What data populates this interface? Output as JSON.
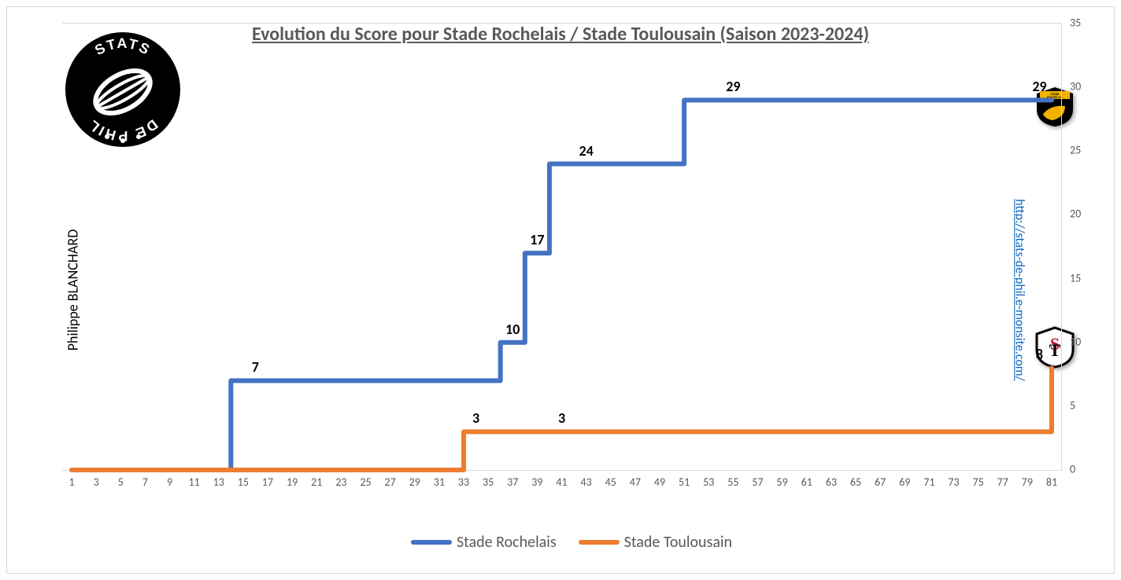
{
  "title": "Evolution du Score pour Stade Rochelais / Stade Toulousain (Saison 2023-2024)",
  "author_vertical": "Philippe BLANCHARD",
  "url_vertical": "http://stats-de-phil.e-monsite.com/",
  "chart": {
    "type": "step-line",
    "background_color": "#ffffff",
    "border_color": "#d9d9d9",
    "x": {
      "min": 1,
      "max": 81,
      "tick_step": 2,
      "label_color": "#595959",
      "label_fontsize": 14
    },
    "y": {
      "min": 0,
      "max": 35,
      "tick_step": 5,
      "side": "right",
      "label_color": "#595959",
      "label_fontsize": 14
    },
    "line_width": 6,
    "series": [
      {
        "name": "Stade Rochelais",
        "color": "#4472c4",
        "steps": [
          {
            "x": 1,
            "y": 0
          },
          {
            "x": 14,
            "y": 7
          },
          {
            "x": 36,
            "y": 10
          },
          {
            "x": 38,
            "y": 17
          },
          {
            "x": 40,
            "y": 24
          },
          {
            "x": 51,
            "y": 29
          },
          {
            "x": 81,
            "y": 29
          }
        ],
        "data_labels": [
          {
            "x": 16,
            "y": 7,
            "text": "7"
          },
          {
            "x": 37,
            "y": 10,
            "text": "10"
          },
          {
            "x": 39,
            "y": 17,
            "text": "17"
          },
          {
            "x": 43,
            "y": 24,
            "text": "24"
          },
          {
            "x": 55,
            "y": 29,
            "text": "29"
          },
          {
            "x": 80,
            "y": 29,
            "text": "29"
          }
        ]
      },
      {
        "name": "Stade Toulousain",
        "color": "#ed7d31",
        "steps": [
          {
            "x": 1,
            "y": 0
          },
          {
            "x": 33,
            "y": 3
          },
          {
            "x": 80,
            "y": 3
          },
          {
            "x": 81,
            "y": 8
          }
        ],
        "data_labels": [
          {
            "x": 34,
            "y": 3,
            "text": "3"
          },
          {
            "x": 41,
            "y": 3,
            "text": "3"
          },
          {
            "x": 80,
            "y": 8,
            "text": "8"
          }
        ]
      }
    ],
    "legend": {
      "fontsize": 20,
      "color": "#595959"
    }
  },
  "logo": {
    "bg": "#000000",
    "fg": "#ffffff",
    "text_top": "STATS",
    "text_bottom": "DE PHIL"
  },
  "clubs": {
    "rochelais": {
      "bg": "#000000",
      "accent": "#f2b100",
      "text": "STADE\nROCHELAIS"
    },
    "toulousain": {
      "bg": "#ffffff",
      "border": "#000000",
      "red": "#c8102e",
      "black": "#000000"
    }
  }
}
